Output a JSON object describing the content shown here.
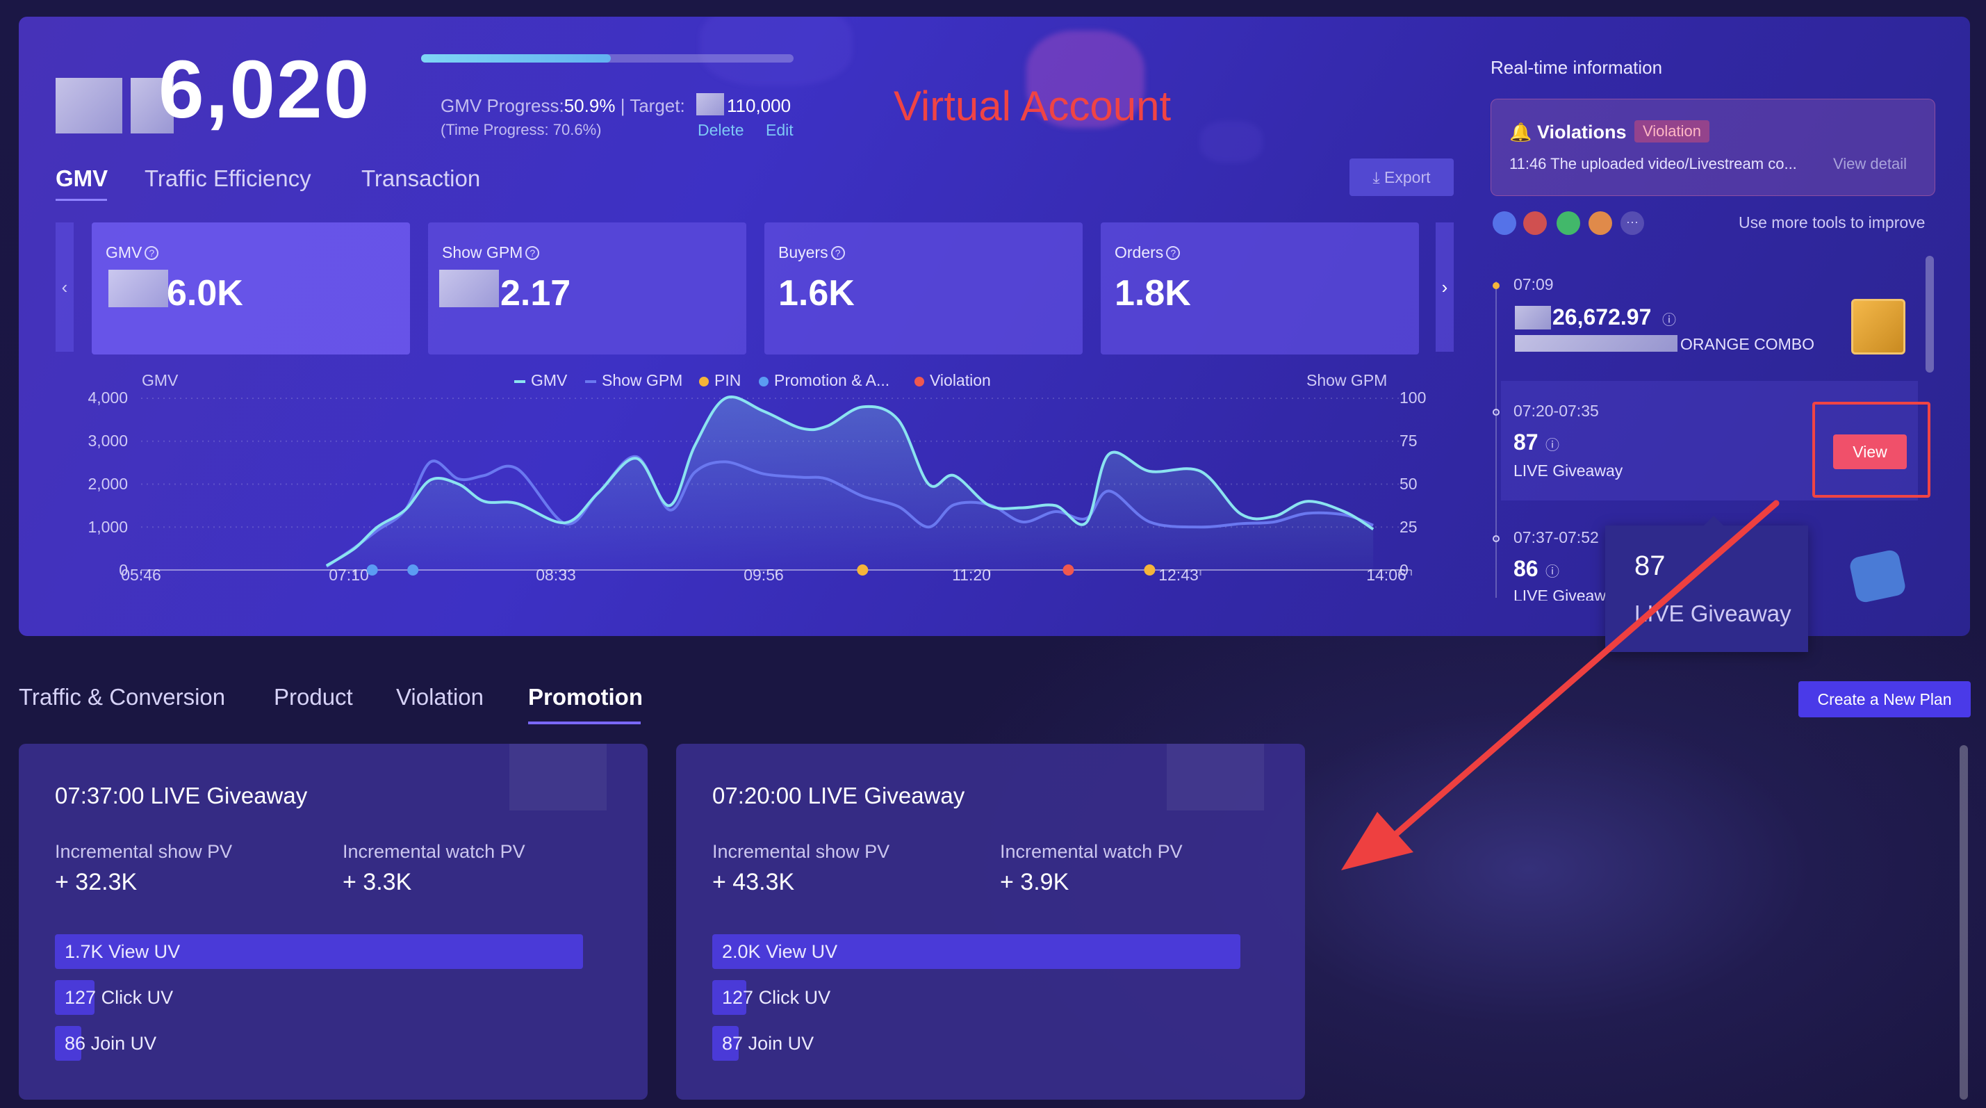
{
  "header": {
    "big_number": "6,020",
    "gmv_progress_label": "GMV Progress:",
    "gmv_progress_value": "50.9%",
    "gmv_progress_pct": 0.509,
    "target_label": "| Target:",
    "target_value": "110,000",
    "time_progress": "(Time Progress: 70.6%)",
    "delete_label": "Delete",
    "edit_label": "Edit",
    "annotation": "Virtual Account"
  },
  "tabs": [
    {
      "label": "GMV",
      "active": true
    },
    {
      "label": "Traffic Efficiency",
      "active": false
    },
    {
      "label": "Transaction",
      "active": false
    }
  ],
  "export_label": "Export",
  "metrics": [
    {
      "label": "GMV",
      "value": "6.0K",
      "help": "?"
    },
    {
      "label": "Show GPM",
      "value": "2.17",
      "help": "?"
    },
    {
      "label": "Buyers",
      "value": "1.6K",
      "help": "?"
    },
    {
      "label": "Orders",
      "value": "1.8K",
      "help": "?"
    }
  ],
  "chart_data": {
    "type": "line",
    "ylabel": "GMV",
    "y2label": "Show GPM",
    "ylim": [
      0,
      4000
    ],
    "y2lim": [
      0,
      100
    ],
    "yticks": [
      "4,000",
      "3,000",
      "2,000",
      "1,000",
      "0"
    ],
    "y2ticks": [
      "100",
      "75",
      "50",
      "25",
      "0"
    ],
    "xticks": [
      "05:46",
      "07:10",
      "08:33",
      "09:56",
      "11:20",
      "12:43",
      "14:06"
    ],
    "legend": [
      "GMV",
      "Show GPM",
      "PIN",
      "Promotion & A...",
      "Violation"
    ],
    "legend_position": "top-center",
    "x": [
      "06:59",
      "07:10",
      "07:19",
      "07:30",
      "07:40",
      "07:51",
      "08:01",
      "08:14",
      "08:33",
      "08:46",
      "09:01",
      "09:14",
      "09:24",
      "09:36",
      "09:51",
      "10:06",
      "10:16",
      "10:30",
      "10:44",
      "10:56",
      "11:06",
      "11:20",
      "11:33",
      "11:46",
      "11:58",
      "12:07",
      "12:23",
      "12:43",
      "12:59",
      "13:12",
      "13:25",
      "13:40",
      "13:51"
    ],
    "series": [
      {
        "name": "GMV",
        "color": "#8be3f0",
        "values": [
          100,
          500,
          1000,
          1400,
          2100,
          2000,
          1600,
          1550,
          1100,
          1800,
          2600,
          1500,
          2900,
          4000,
          3700,
          3300,
          3350,
          3800,
          3500,
          2000,
          2200,
          1500,
          1450,
          1500,
          1100,
          2700,
          2300,
          2300,
          1300,
          1250,
          1600,
          1350,
          950
        ]
      },
      {
        "name": "Show GPM",
        "color": "#6a78f0",
        "values": [
          2,
          13,
          23,
          35,
          63,
          53,
          55,
          59,
          27,
          45,
          66,
          35,
          57,
          63,
          56,
          54,
          53,
          43,
          37,
          25,
          38,
          38,
          28,
          34,
          30,
          46,
          28,
          25,
          27,
          28,
          33,
          32,
          26
        ]
      }
    ],
    "markers": [
      {
        "type": "Promotion & A...",
        "x": "07:17",
        "color": "#5b9cf2"
      },
      {
        "type": "Promotion & A...",
        "x": "07:33",
        "color": "#5b9cf2"
      },
      {
        "type": "PIN",
        "x": "10:30",
        "color": "#f5b53a"
      },
      {
        "type": "Violation",
        "x": "11:51",
        "color": "#f0584e"
      },
      {
        "type": "PIN",
        "x": "12:23",
        "color": "#f5b53a"
      }
    ]
  },
  "realtime": {
    "title": "Real-time information",
    "violation_title": "Violations",
    "violation_badge": "Violation",
    "violation_text": "11:46 The uploaded video/Livestream co...",
    "view_detail": "View detail",
    "more_tools": "Use more tools to improve",
    "more_glyph": "···",
    "items": [
      {
        "time": "07:09",
        "value": "26,672.97",
        "subtitle": "ORANGE COMBO"
      },
      {
        "time": "07:20-07:35",
        "value": "87",
        "subtitle": "LIVE Giveaway",
        "button": "View"
      },
      {
        "time": "07:37-07:52",
        "value": "86",
        "subtitle": "LIVE Giveaw"
      }
    ],
    "tooltip_value": "87",
    "tooltip_label": "LIVE Giveaway"
  },
  "bottom_tabs": [
    {
      "label": "Traffic & Conversion",
      "active": false
    },
    {
      "label": "Product",
      "active": false
    },
    {
      "label": "Violation",
      "active": false
    },
    {
      "label": "Promotion",
      "active": true
    }
  ],
  "create_plan_label": "Create a New Plan",
  "promotions": [
    {
      "title": "07:37:00 LIVE Giveaway",
      "show_label": "Incremental show PV",
      "show_value": "+ 32.3K",
      "watch_label": "Incremental watch PV",
      "watch_value": "+ 3.3K",
      "funnel": [
        {
          "value": "1.7K",
          "label": "View UV",
          "fraction": 1.0
        },
        {
          "value": "127",
          "label": "Click UV",
          "fraction": 0.075
        },
        {
          "value": "86",
          "label": "Join UV",
          "fraction": 0.05
        }
      ]
    },
    {
      "title": "07:20:00 LIVE Giveaway",
      "show_label": "Incremental show PV",
      "show_value": "+ 43.3K",
      "watch_label": "Incremental watch PV",
      "watch_value": "+ 3.9K",
      "funnel": [
        {
          "value": "2.0K",
          "label": "View UV",
          "fraction": 1.0
        },
        {
          "value": "127",
          "label": "Click UV",
          "fraction": 0.064
        },
        {
          "value": "87",
          "label": "Join UV",
          "fraction": 0.044
        }
      ]
    }
  ]
}
